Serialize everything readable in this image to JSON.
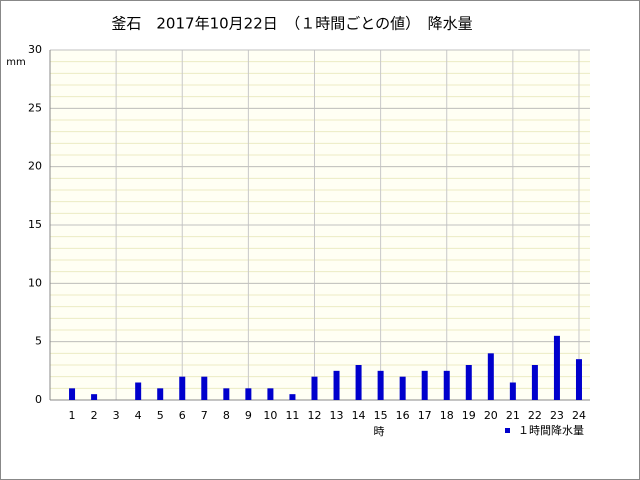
{
  "chart_data": {
    "type": "bar",
    "title": "釜石　2017年10月22日　（１時間ごとの値）　降水量",
    "y_unit": "mm",
    "x_label": "時",
    "categories": [
      "1",
      "2",
      "3",
      "4",
      "5",
      "6",
      "7",
      "8",
      "9",
      "10",
      "11",
      "12",
      "13",
      "14",
      "15",
      "16",
      "17",
      "18",
      "19",
      "20",
      "21",
      "22",
      "23",
      "24"
    ],
    "series": [
      {
        "name": "１時間降水量",
        "color": "#0000cc",
        "values": [
          1.0,
          0.5,
          0,
          1.5,
          1.0,
          2.0,
          2.0,
          1.0,
          1.0,
          1.0,
          0.5,
          2.0,
          2.5,
          3.0,
          2.5,
          2.0,
          2.5,
          2.5,
          3.0,
          4.0,
          1.5,
          3.0,
          5.5,
          3.5
        ]
      }
    ],
    "ylim": [
      0,
      30
    ],
    "yticks": [
      0,
      5,
      10,
      15,
      20,
      25,
      30
    ],
    "grid": true,
    "minor_grid_step": 1,
    "x_grid_every": 3,
    "legend": "bottom-right"
  }
}
